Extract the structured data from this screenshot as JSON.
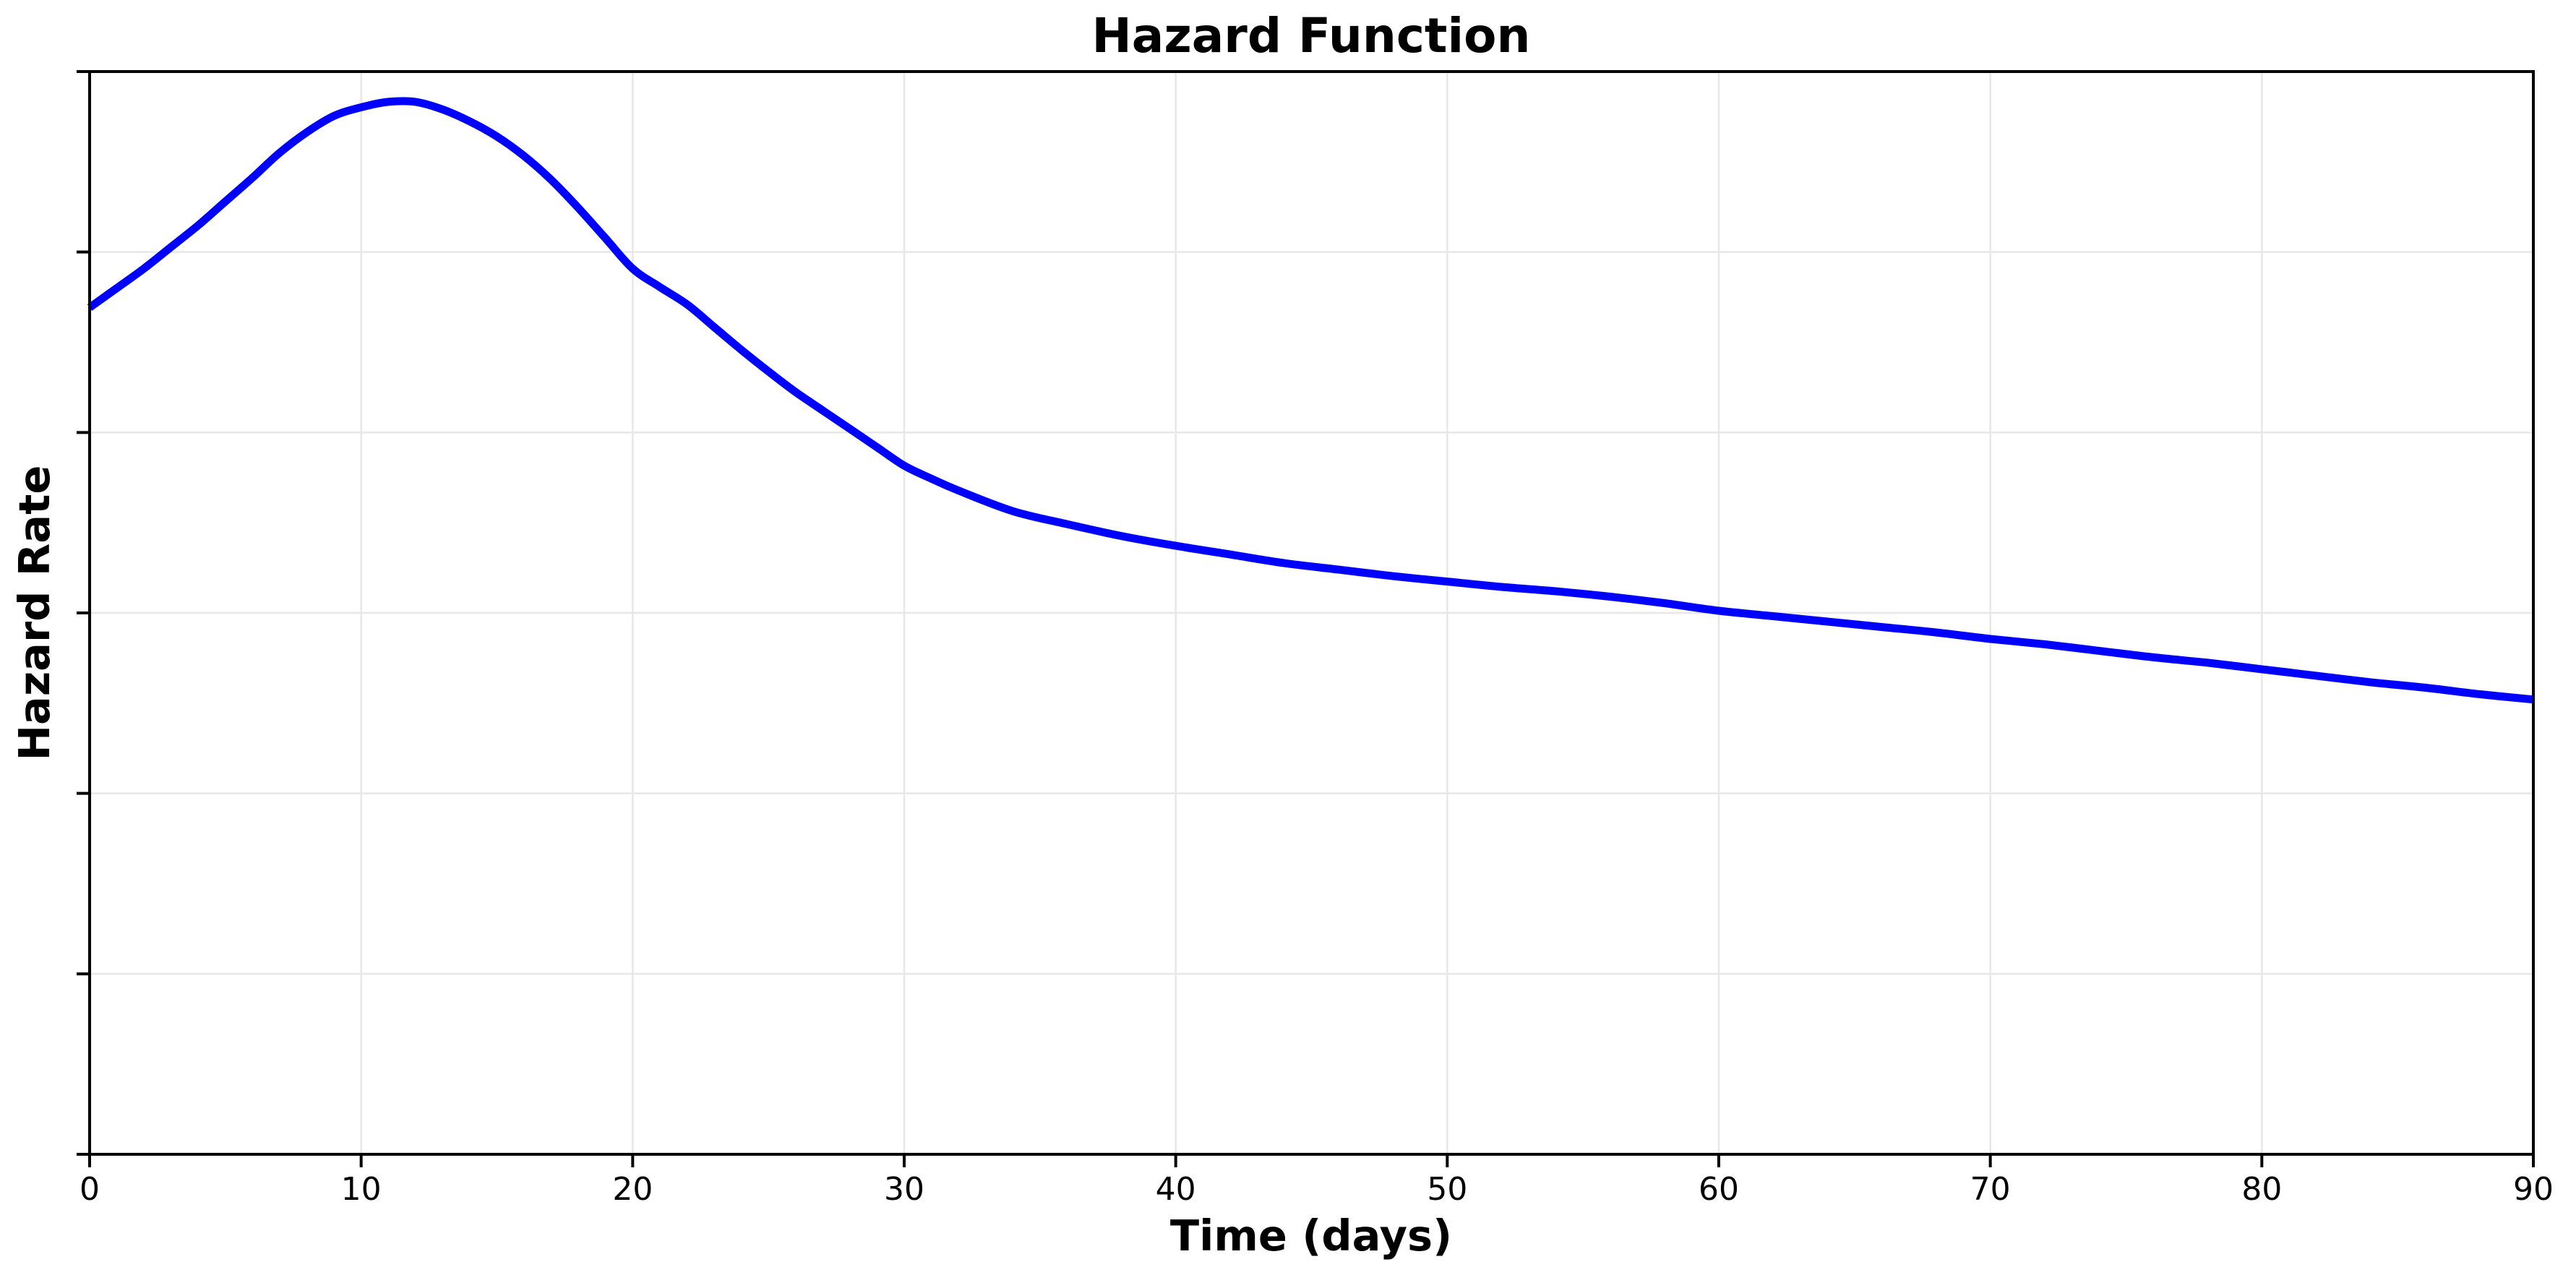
{
  "figure": {
    "background": "#ffffff"
  },
  "colors": {
    "line": "#0000ff",
    "grid": "#e7e7e7",
    "axis": "#000000",
    "text": "#000000"
  },
  "chart_data": {
    "type": "line",
    "title": "Hazard Function",
    "xlabel": "Time (days)",
    "ylabel": "Hazard Rate",
    "xlim": [
      0,
      90
    ],
    "ylim": [
      0,
      1
    ],
    "x_ticks": [
      0,
      10,
      20,
      30,
      40,
      50,
      60,
      70,
      80,
      90
    ],
    "y_tick_count": 7,
    "y_ticks_labeled": false,
    "grid": true,
    "legend_position": "none",
    "note": "y-axis ticks are unlabeled; series values are normalized fractions of the plot height (0 = bottom axis, 1 = top axis)",
    "peak": {
      "t": 11.5,
      "value": 0.972
    },
    "series": [
      {
        "name": "hazard-rate",
        "color": "#0000ff",
        "points": [
          [
            0,
            0.782
          ],
          [
            1,
            0.8
          ],
          [
            2,
            0.818
          ],
          [
            3,
            0.838
          ],
          [
            4,
            0.858
          ],
          [
            5,
            0.88
          ],
          [
            6,
            0.902
          ],
          [
            7,
            0.925
          ],
          [
            8,
            0.944
          ],
          [
            9,
            0.959
          ],
          [
            10,
            0.967
          ],
          [
            11,
            0.972
          ],
          [
            12,
            0.972
          ],
          [
            13,
            0.965
          ],
          [
            14,
            0.954
          ],
          [
            15,
            0.94
          ],
          [
            16,
            0.922
          ],
          [
            17,
            0.9
          ],
          [
            18,
            0.874
          ],
          [
            19,
            0.846
          ],
          [
            20,
            0.818
          ],
          [
            21,
            0.801
          ],
          [
            22,
            0.785
          ],
          [
            23,
            0.764
          ],
          [
            24,
            0.743
          ],
          [
            25,
            0.723
          ],
          [
            26,
            0.704
          ],
          [
            27,
            0.687
          ],
          [
            28,
            0.67
          ],
          [
            29,
            0.653
          ],
          [
            30,
            0.636
          ],
          [
            31,
            0.624
          ],
          [
            32,
            0.613
          ],
          [
            34,
            0.594
          ],
          [
            36,
            0.582
          ],
          [
            38,
            0.571
          ],
          [
            40,
            0.562
          ],
          [
            42,
            0.554
          ],
          [
            44,
            0.546
          ],
          [
            46,
            0.54
          ],
          [
            48,
            0.534
          ],
          [
            50,
            0.529
          ],
          [
            52,
            0.524
          ],
          [
            54,
            0.52
          ],
          [
            56,
            0.515
          ],
          [
            58,
            0.509
          ],
          [
            60,
            0.502
          ],
          [
            62,
            0.497
          ],
          [
            64,
            0.492
          ],
          [
            66,
            0.487
          ],
          [
            68,
            0.482
          ],
          [
            70,
            0.476
          ],
          [
            72,
            0.471
          ],
          [
            74,
            0.465
          ],
          [
            76,
            0.459
          ],
          [
            78,
            0.454
          ],
          [
            80,
            0.448
          ],
          [
            82,
            0.442
          ],
          [
            84,
            0.436
          ],
          [
            86,
            0.431
          ],
          [
            88,
            0.425
          ],
          [
            90,
            0.42
          ]
        ]
      }
    ]
  }
}
